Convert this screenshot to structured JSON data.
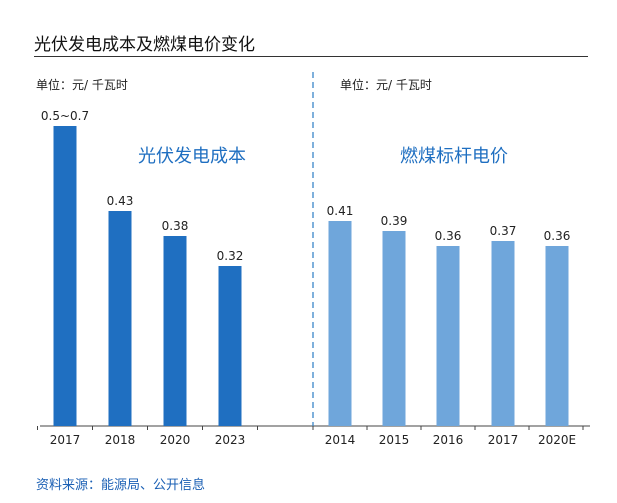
{
  "header": {
    "title": "光伏发电成本及燃煤电价变化"
  },
  "footer": {
    "source": "资料来源：能源局、公开信息"
  },
  "colors": {
    "left_bar": "#1f6fc1",
    "right_bar": "#6fa6db",
    "left_title": "#1f6fc1",
    "right_title": "#1f6fc1",
    "divider": "#3a86c8"
  },
  "chart_data": [
    {
      "type": "bar",
      "title": "光伏发电成本",
      "unit_label": "单位：元/ 千瓦时",
      "categories": [
        "2017",
        "2018",
        "2020",
        "2023"
      ],
      "values": [
        0.6,
        0.43,
        0.38,
        0.32
      ],
      "value_labels": [
        "0.5~0.7",
        "0.43",
        "0.38",
        "0.32"
      ]
    },
    {
      "type": "bar",
      "title": "燃煤标杆电价",
      "unit_label": "单位：元/ 千瓦时",
      "categories": [
        "2014",
        "2015",
        "2016",
        "2017",
        "2020E"
      ],
      "values": [
        0.41,
        0.39,
        0.36,
        0.37,
        0.36
      ],
      "value_labels": [
        "0.41",
        "0.39",
        "0.36",
        "0.37",
        "0.36"
      ]
    }
  ]
}
